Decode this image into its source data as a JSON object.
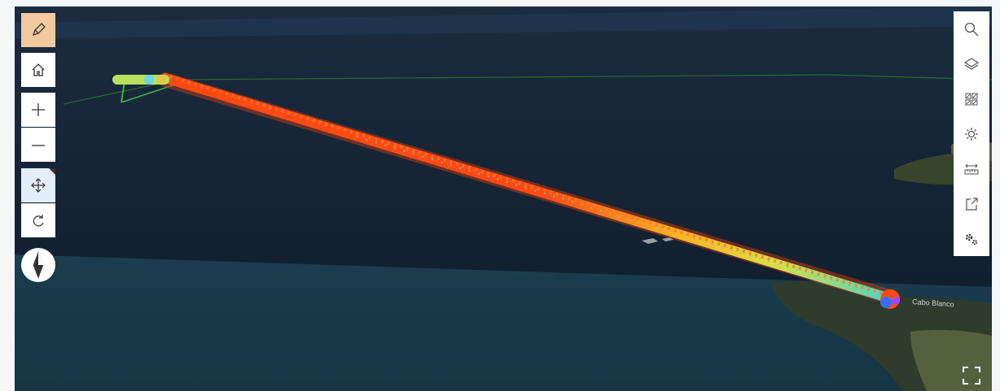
{
  "toolbar_left": {
    "edit": {
      "icon": "pencil-icon"
    },
    "home": {
      "icon": "home-icon"
    },
    "zoom_in": {
      "icon": "plus-icon"
    },
    "zoom_out": {
      "icon": "minus-icon"
    },
    "pan": {
      "icon": "pan-icon",
      "active": true
    },
    "rotate": {
      "icon": "rotate-icon"
    },
    "compass": {
      "icon": "compass-icon"
    }
  },
  "toolbar_right": [
    {
      "id": "search",
      "icon": "search-icon"
    },
    {
      "id": "layers",
      "icon": "layers-icon"
    },
    {
      "id": "basemap",
      "icon": "basemap-gallery-icon"
    },
    {
      "id": "daylight",
      "icon": "sun-icon"
    },
    {
      "id": "measure",
      "icon": "ruler-icon"
    },
    {
      "id": "share",
      "icon": "share-icon"
    },
    {
      "id": "settings",
      "icon": "gears-icon"
    }
  ],
  "map": {
    "place_label": "Cabo Blanco",
    "fullscreen_icon": "fullscreen-icon",
    "colors": {
      "sky": "#121d2b",
      "ocean": "#173a4a",
      "track_hot": "#ff4a14",
      "track_warm": "#ffc21e",
      "track_cool": "#3fd6c6"
    }
  }
}
